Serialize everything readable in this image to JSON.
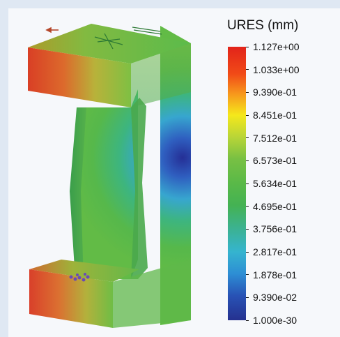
{
  "legend": {
    "title": "URES (mm)",
    "ticks": [
      "1.127e+00",
      "1.033e+00",
      "9.390e-01",
      "8.451e-01",
      "7.512e-01",
      "6.573e-01",
      "5.634e-01",
      "4.695e-01",
      "3.756e-01",
      "2.817e-01",
      "1.878e-01",
      "9.390e-02",
      "1.000e-30"
    ]
  },
  "model": {
    "description_colors": {
      "max": "#e2231a",
      "mid": "#59b948",
      "min": "#25318f"
    }
  }
}
